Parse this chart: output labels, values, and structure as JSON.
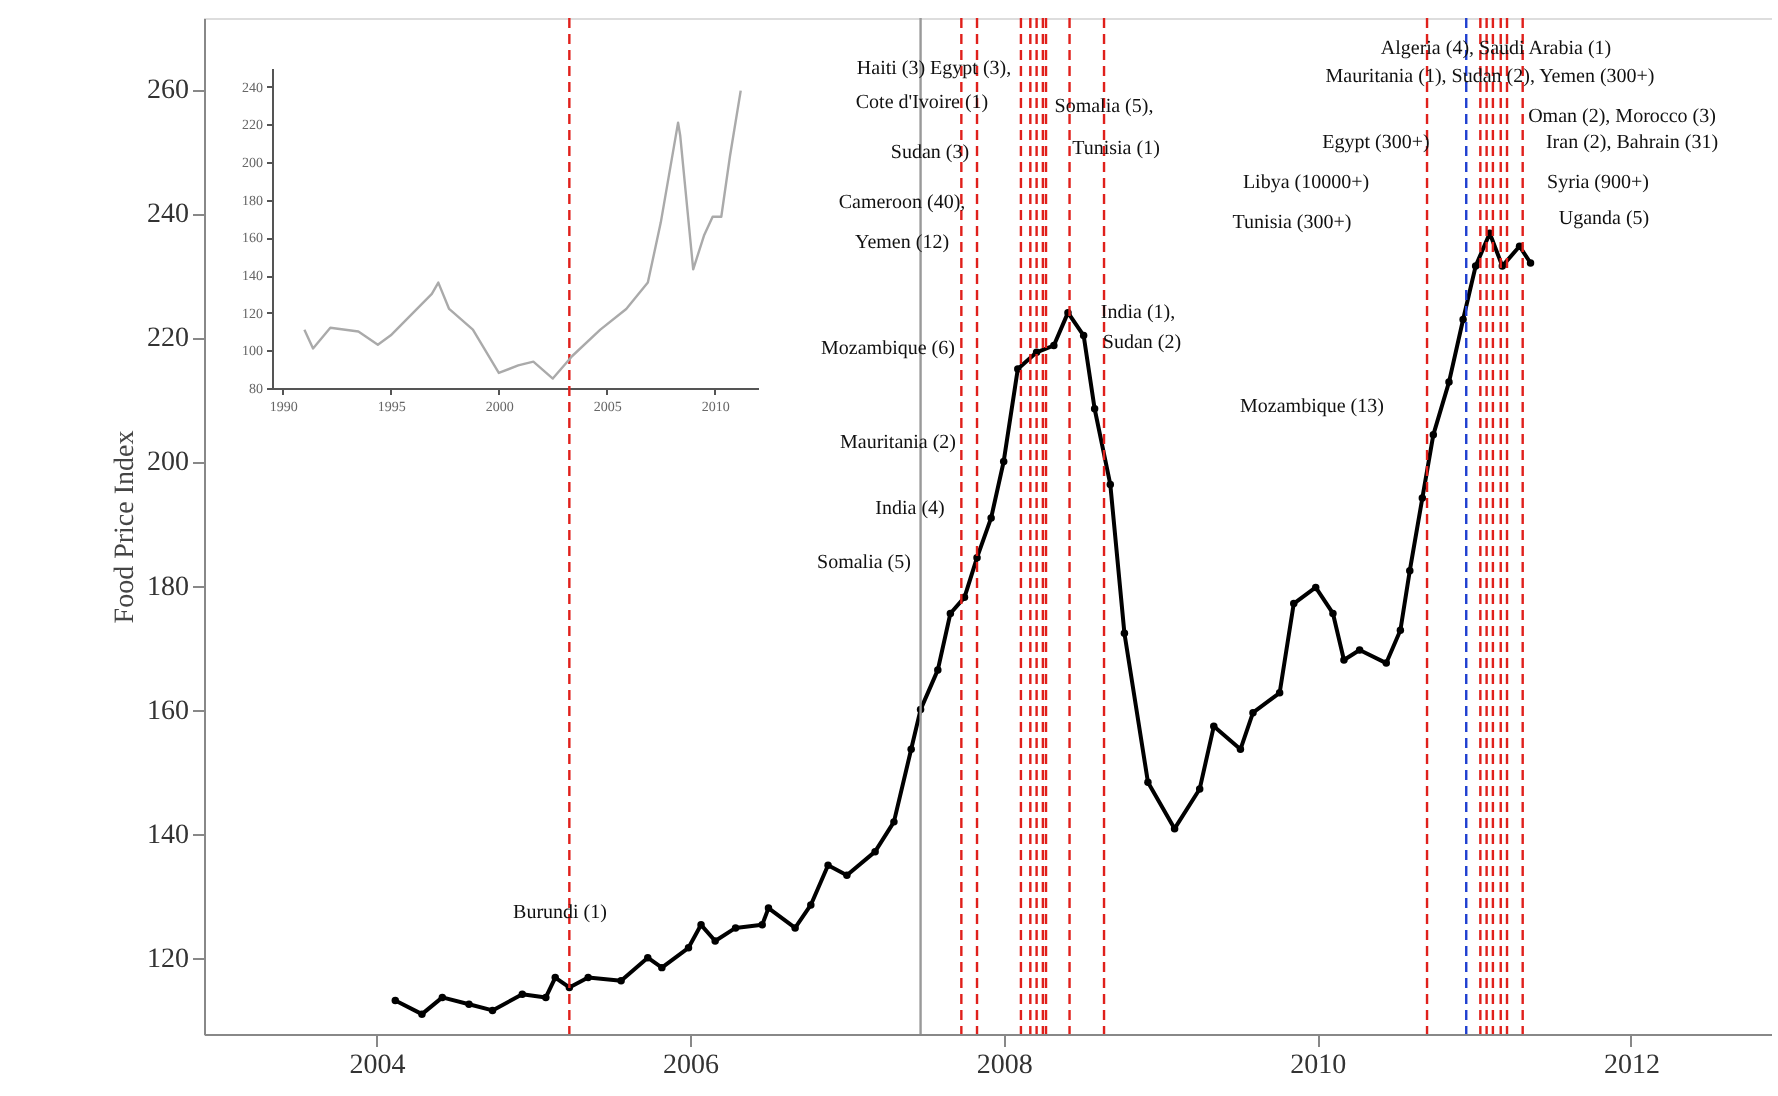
{
  "chart_data": [
    {
      "type": "line",
      "ylabel": "Food Price Index",
      "xlim": [
        2002.9,
        2012.9
      ],
      "ylim": [
        107.7,
        271.5
      ],
      "xticks": [
        2004,
        2006,
        2008,
        2010,
        2012
      ],
      "yticks": [
        120,
        140,
        160,
        180,
        200,
        220,
        240,
        260
      ],
      "marker": "circle",
      "line_style": "solid",
      "grid": false,
      "series": [
        {
          "color": "#000000",
          "x": [
            2004.12,
            2004.29,
            2004.42,
            2004.59,
            2004.74,
            2004.93,
            2005.08,
            2005.14,
            2005.23,
            2005.35,
            2005.56,
            2005.73,
            2005.82,
            2005.99,
            2006.07,
            2006.16,
            2006.29,
            2006.46,
            2006.5,
            2006.67,
            2006.77,
            2006.88,
            2007.0,
            2007.18,
            2007.3,
            2007.41,
            2007.47,
            2007.58,
            2007.66,
            2007.75,
            2007.83,
            2007.92,
            2008.0,
            2008.09,
            2008.21,
            2008.32,
            2008.41,
            2008.51,
            2008.58,
            2008.68,
            2008.77,
            2008.92,
            2009.09,
            2009.25,
            2009.34,
            2009.51,
            2009.59,
            2009.76,
            2009.85,
            2009.99,
            2010.1,
            2010.17,
            2010.27,
            2010.44,
            2010.53,
            2010.59,
            2010.67,
            2010.74,
            2010.84,
            2010.93,
            2011.01,
            2011.1,
            2011.18,
            2011.29,
            2011.36
          ],
          "values": [
            113.1,
            110.9,
            113.6,
            112.5,
            111.5,
            114.1,
            113.6,
            116.8,
            115.2,
            116.8,
            116.3,
            120,
            118.4,
            121.6,
            125.3,
            122.7,
            124.8,
            125.3,
            128,
            124.8,
            128.5,
            134.9,
            133.3,
            137.1,
            141.9,
            153.6,
            160,
            166.4,
            175.5,
            178.1,
            184.5,
            190.9,
            200,
            214.9,
            217.6,
            218.7,
            224,
            220.3,
            208.5,
            196.3,
            172.3,
            148.3,
            140.8,
            147.2,
            157.3,
            153.6,
            159.5,
            162.7,
            177.1,
            179.7,
            175.5,
            168,
            169.6,
            167.5,
            172.8,
            182.4,
            194.1,
            204.3,
            212.8,
            222.9,
            231.5,
            236.8,
            231.5,
            234.7,
            232
          ]
        }
      ],
      "ref_lines": [
        {
          "axis": "x",
          "value": 2005.23,
          "color": "#e0201b",
          "line_style": "dashed"
        },
        {
          "axis": "x",
          "value": 2007.47,
          "color": "#999999",
          "line_style": "solid"
        },
        {
          "axis": "x",
          "value": 2007.73,
          "color": "#e0201b",
          "line_style": "dashed"
        },
        {
          "axis": "x",
          "value": 2007.83,
          "color": "#e0201b",
          "line_style": "dashed"
        },
        {
          "axis": "x",
          "value": 2008.11,
          "color": "#e0201b",
          "line_style": "dashed"
        },
        {
          "axis": "x",
          "value": 2008.17,
          "color": "#e0201b",
          "line_style": "dashed"
        },
        {
          "axis": "x",
          "value": 2008.21,
          "color": "#e0201b",
          "line_style": "dashed"
        },
        {
          "axis": "x",
          "value": 2008.25,
          "color": "#e0201b",
          "line_style": "dashed"
        },
        {
          "axis": "x",
          "value": 2008.27,
          "color": "#e0201b",
          "line_style": "dashed"
        },
        {
          "axis": "x",
          "value": 2008.42,
          "color": "#e0201b",
          "line_style": "dashed"
        },
        {
          "axis": "x",
          "value": 2008.64,
          "color": "#e0201b",
          "line_style": "dashed"
        },
        {
          "axis": "x",
          "value": 2010.7,
          "color": "#e0201b",
          "line_style": "dashed"
        },
        {
          "axis": "x",
          "value": 2010.95,
          "color": "#1f3fd0",
          "line_style": "dashed"
        },
        {
          "axis": "x",
          "value": 2011.04,
          "color": "#e0201b",
          "line_style": "dashed"
        },
        {
          "axis": "x",
          "value": 2011.08,
          "color": "#e0201b",
          "line_style": "dashed"
        },
        {
          "axis": "x",
          "value": 2011.12,
          "color": "#e0201b",
          "line_style": "dashed"
        },
        {
          "axis": "x",
          "value": 2011.17,
          "color": "#e0201b",
          "line_style": "dashed"
        },
        {
          "axis": "x",
          "value": 2011.21,
          "color": "#e0201b",
          "line_style": "dashed"
        },
        {
          "axis": "x",
          "value": 2011.31,
          "color": "#e0201b",
          "line_style": "dashed"
        }
      ],
      "annotations": [
        "Burundi (1)",
        "Somalia (5)",
        "India (4)",
        "Mauritania (2)",
        "Mozambique (6)",
        "Yemen (12)",
        "Cameroon (40),",
        "Sudan (3)",
        "Cote d'Ivoire (1)",
        "Haiti (3) Egypt (3),",
        "Somalia (5),",
        "Tunisia (1)",
        "India (1),",
        "Sudan (2)",
        "Mozambique (13)",
        "Tunisia (300+)",
        "Libya (10000+)",
        "Egypt (300+)",
        "Uganda (5)",
        "Syria (900+)",
        "Iran (2), Bahrain (31)",
        "Oman (2), Morocco (3)",
        "Mauritania (1), Sudan (2), Yemen (300+)",
        "Algeria (4), Saudi Arabia (1)"
      ]
    },
    {
      "type": "line",
      "xlim": [
        1989.5,
        2012
      ],
      "ylim": [
        80,
        250
      ],
      "xticks": [
        1990,
        1995,
        2000,
        2005,
        2010
      ],
      "yticks": [
        80,
        100,
        120,
        140,
        160,
        180,
        200,
        220,
        240
      ],
      "grid": false,
      "series": [
        {
          "color": "#aaaaaa",
          "x": [
            1991.0,
            1991.4,
            1992.2,
            1993.5,
            1994.4,
            1995.0,
            1996.9,
            1997.2,
            1997.7,
            1997.9,
            1998.8,
            2000.0,
            2000.9,
            2001.6,
            2002.5,
            2003.4,
            2004.7,
            2005.9,
            2006.9,
            2007.5,
            2008.3,
            2008.4,
            2009.0,
            2009.5,
            2009.9,
            2010.3,
            2010.7,
            2011.2
          ],
          "values": [
            111,
            101,
            112,
            110,
            103,
            108,
            130,
            136,
            122,
            120,
            111,
            88,
            92,
            94,
            85,
            97,
            111,
            122,
            136,
            168,
            221,
            214,
            143,
            161,
            171,
            171,
            203,
            238
          ]
        }
      ]
    }
  ]
}
